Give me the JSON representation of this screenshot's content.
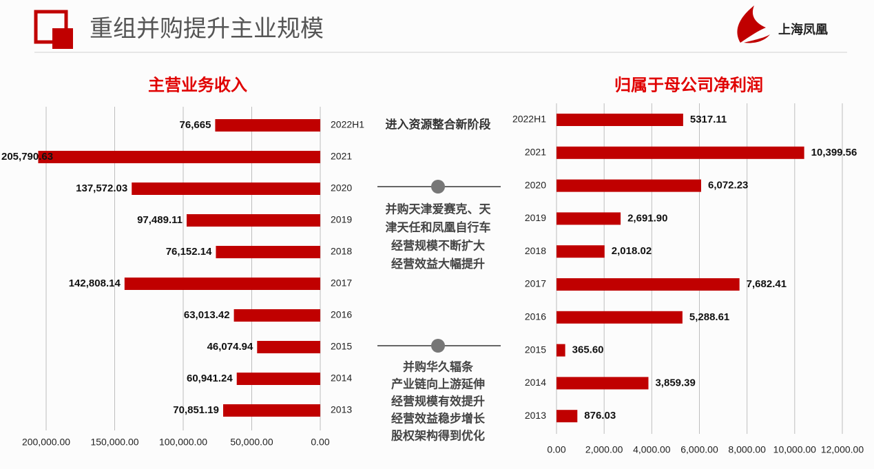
{
  "header": {
    "title": "重组并购提升主业规模",
    "logo_text": "上海凤凰"
  },
  "annotations": {
    "stage": "进入资源整合新阶段",
    "milestones": [
      [
        "并购天津爱赛克、天",
        "津天任和凤凰自行车",
        "经营规模不断扩大",
        "经营效益大幅提升"
      ],
      [
        "并购华久辐条",
        "产业链向上游延伸",
        "经营规模有效提升",
        "经营效益稳步增长",
        "股权架构得到优化"
      ]
    ]
  },
  "chart_data": [
    {
      "type": "bar",
      "orientation": "horizontal",
      "title": "主营业务收入",
      "color": "#c00000",
      "grid": true,
      "x_reversed": true,
      "categories": [
        "2022H1",
        "2021",
        "2020",
        "2019",
        "2018",
        "2017",
        "2016",
        "2015",
        "2014",
        "2013"
      ],
      "values": [
        76665,
        205790.63,
        137572.03,
        97489.11,
        76152.14,
        142808.14,
        63013.42,
        46074.94,
        60941.24,
        70851.19
      ],
      "value_labels": [
        "76,665",
        "205,790.63",
        "137,572.03",
        "97,489.11",
        "76,152.14",
        "142,808.14",
        "63,013.42",
        "46,074.94",
        "60,941.24",
        "70,851.19"
      ],
      "xlim": [
        0,
        200000
      ],
      "xticks": [
        {
          "value": 0,
          "label": "0.00"
        },
        {
          "value": 50000,
          "label": "50,000.00"
        },
        {
          "value": 100000,
          "label": "100,000.00"
        },
        {
          "value": 150000,
          "label": "150,000.00"
        },
        {
          "value": 200000,
          "label": "200,000.00"
        }
      ]
    },
    {
      "type": "bar",
      "orientation": "horizontal",
      "title": "归属于母公司净利润",
      "color": "#c00000",
      "grid": true,
      "x_reversed": false,
      "categories": [
        "2022H1",
        "2021",
        "2020",
        "2019",
        "2018",
        "2017",
        "2016",
        "2015",
        "2014",
        "2013"
      ],
      "values": [
        5317.11,
        10399.56,
        6072.23,
        2691.9,
        2018.02,
        7682.41,
        5288.61,
        365.6,
        3859.39,
        876.03
      ],
      "value_labels": [
        "5317.11",
        "10,399.56",
        "6,072.23",
        "2,691.90",
        "2,018.02",
        "7,682.41",
        "5,288.61",
        "365.60",
        "3,859.39",
        "876.03"
      ],
      "xlim": [
        0,
        12000
      ],
      "xticks": [
        {
          "value": 0,
          "label": "0.00"
        },
        {
          "value": 2000,
          "label": "2,000.00"
        },
        {
          "value": 4000,
          "label": "4,000.00"
        },
        {
          "value": 6000,
          "label": "6,000.00"
        },
        {
          "value": 8000,
          "label": "8,000.00"
        },
        {
          "value": 10000,
          "label": "10,000.00"
        },
        {
          "value": 12000,
          "label": "12,000.00"
        }
      ]
    }
  ]
}
